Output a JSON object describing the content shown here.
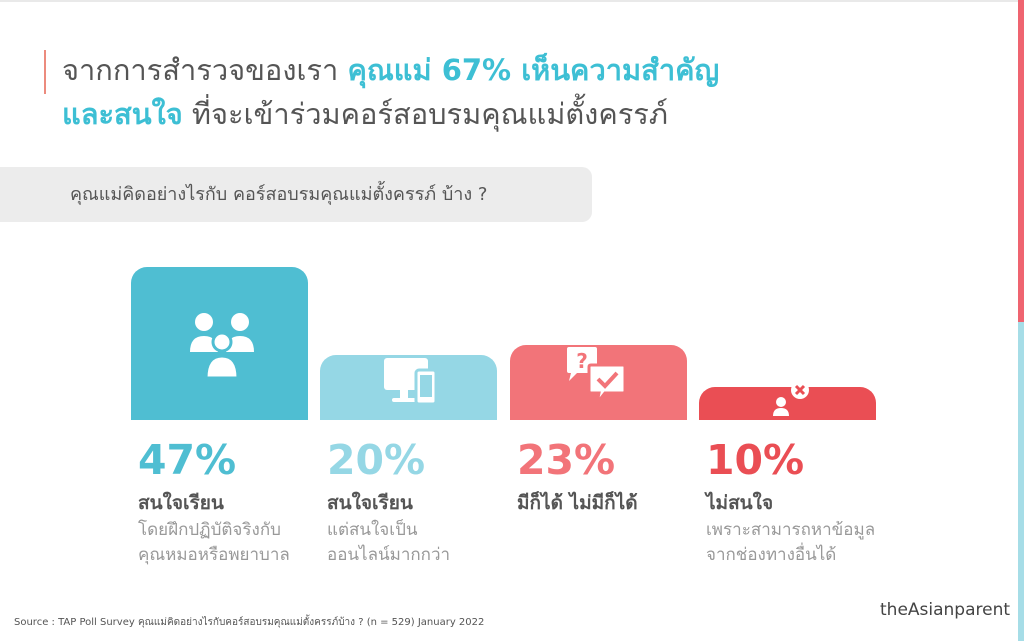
{
  "title": {
    "part1": "จากการสำรวจของเรา ",
    "highlight1": "คุณแม่ 67% เห็นความสำคัญ",
    "highlight2": "และสนใจ",
    "part2": " ที่จะเข้าร่วมคอร์สอบรมคุณแม่ตั้งครรภ์"
  },
  "question": "คุณแม่คิดอย่างไรกับ คอร์สอบรมคุณแม่ตั้งครรภ์ บ้าง ?",
  "chart_data": {
    "type": "bar",
    "categories": [
      "สนใจเรียน",
      "สนใจเรียน",
      "มีก็ได้ ไม่มีก็ได้",
      "ไม่สนใจ"
    ],
    "values": [
      47,
      20,
      23,
      10
    ],
    "value_labels": [
      "47%",
      "20%",
      "23%",
      "10%"
    ],
    "sublabels": [
      [
        "โดยฝึกปฏิบัติจริงกับ",
        "คุณหมอหรือพยาบาล"
      ],
      [
        "แต่สนใจเป็น",
        "ออนไลน์มากกว่า"
      ],
      [],
      [
        "เพราะสามารถหาข้อมูล",
        "จากช่องทางอื่นได้"
      ]
    ],
    "colors": [
      "#4fbed2",
      "#95d7e5",
      "#f27479",
      "#ea4e54"
    ],
    "icons": [
      "family-icon",
      "devices-icon",
      "question-check-icon",
      "person-cross-icon"
    ],
    "title": "",
    "xlabel": "",
    "ylabel": ""
  },
  "source": "Source : TAP Poll Survey คุณแม่คิดอย่างไรกับคอร์สอบรมคุณแม่ตั้งครรภ์บ้าง ? (n = 529) January 2022",
  "brand": "theAsianparent"
}
